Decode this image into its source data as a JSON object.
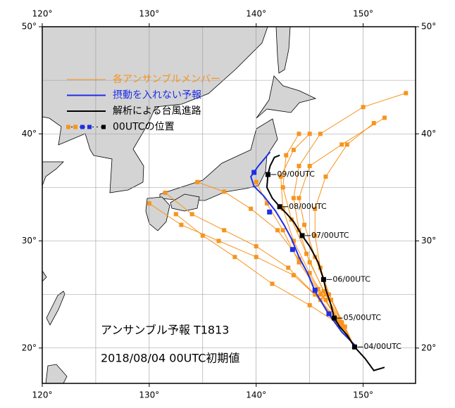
{
  "axes": {
    "xlim": [
      120,
      154.9
    ],
    "ylim": [
      16.7,
      50
    ],
    "xticks": [
      {
        "value": 120,
        "label": "120°"
      },
      {
        "value": 130,
        "label": "130°"
      },
      {
        "value": 140,
        "label": "140°"
      },
      {
        "value": 150,
        "label": "150°"
      }
    ],
    "yticks": [
      {
        "value": 20,
        "label": "20°"
      },
      {
        "value": 30,
        "label": "30°"
      },
      {
        "value": 40,
        "label": "40°"
      },
      {
        "value": 50,
        "label": "50°"
      }
    ],
    "xgrid": [
      125,
      130,
      135,
      140,
      145,
      150
    ],
    "ygrid": [
      20,
      25,
      30,
      35,
      40,
      45
    ]
  },
  "legend": [
    {
      "label": "各アンサンブルメンバー",
      "color": "#f7941d"
    },
    {
      "label": "摂動を入れない予報",
      "color": "#1f2ee6"
    },
    {
      "label": "解析による台風進路",
      "color": "#000000"
    },
    {
      "label": "00UTCの位置",
      "color": "#000000"
    }
  ],
  "annotations": [
    "アンサンブル予報 T1813",
    "2018/08/04 00UTC初期値"
  ],
  "analysis": {
    "color": "#000000",
    "lon": [
      152,
      151,
      150.2,
      149.2,
      148.5,
      147.8,
      147.3,
      147,
      146.5,
      146.3,
      145.8,
      145,
      144.3,
      143.5,
      142.8,
      142.2,
      141.5,
      141,
      141.1,
      141.3,
      141.7,
      142.2
    ],
    "lat": [
      18.2,
      17.9,
      19,
      20.1,
      21.2,
      22,
      22.8,
      24,
      25.5,
      26.4,
      28,
      29.5,
      30.5,
      31.8,
      32.6,
      33.2,
      34,
      35,
      36.2,
      37,
      37.8,
      38
    ],
    "daily": {
      "labels": [
        "04/00UTC",
        "05/00UTC",
        "06/00UTC",
        "07/00UTC",
        "08/00UTC",
        "09/00UTC"
      ],
      "lon": [
        149.2,
        147.3,
        146.3,
        144.3,
        142.2,
        141.1
      ],
      "lat": [
        20.1,
        22.8,
        26.4,
        30.5,
        33.2,
        36.2
      ]
    }
  },
  "control": {
    "color": "#1f2ee6",
    "lon": [
      149.3,
      148,
      146.7,
      145.5,
      144.8,
      144,
      143.3,
      142.6,
      141.8,
      140.7,
      139.8,
      139.5,
      140.2,
      141.3
    ],
    "lat": [
      20.2,
      21.5,
      23.3,
      25.3,
      27,
      28.5,
      30.2,
      31.5,
      32.8,
      34.2,
      35.1,
      36,
      37,
      38.3
    ],
    "daily": {
      "lon": [
        146.8,
        145.5,
        143.4,
        141.25,
        139.8
      ],
      "lat": [
        23.2,
        25.4,
        29.2,
        32.7,
        36.4
      ]
    }
  },
  "members": {
    "color": "#f7941d",
    "tracks": [
      {
        "lon": [
          149.2,
          148,
          146.5,
          145,
          144,
          143.5,
          144,
          146,
          150,
          154
        ],
        "lat": [
          20.1,
          22,
          25,
          28,
          31,
          34,
          37,
          40,
          42.5,
          43.8
        ]
      },
      {
        "lon": [
          149.2,
          148,
          146,
          144,
          142.5,
          141,
          140
        ],
        "lat": [
          20.1,
          22.3,
          25,
          28,
          31,
          33.5,
          35.5
        ]
      },
      {
        "lon": [
          149.2,
          148.3,
          146.8,
          145.5,
          144.5,
          144,
          145,
          148,
          152
        ],
        "lat": [
          20.1,
          22,
          25,
          28.5,
          31.5,
          34,
          37,
          39,
          41.5
        ]
      },
      {
        "lon": [
          149.2,
          147.5,
          145.5,
          143,
          140,
          137,
          134,
          131.5
        ],
        "lat": [
          20.1,
          22.5,
          25,
          27.5,
          29.5,
          31,
          32.5,
          34.5
        ]
      },
      {
        "lon": [
          149.2,
          147.8,
          146,
          143.5,
          140,
          136.5,
          133,
          130
        ],
        "lat": [
          20.1,
          22.3,
          24.5,
          26.8,
          28.5,
          30,
          31.5,
          33.5
        ]
      },
      {
        "lon": [
          149.2,
          148,
          146.5,
          145,
          143.5,
          142.5,
          142.3,
          143.5,
          145
        ],
        "lat": [
          20.1,
          22.2,
          24.5,
          27,
          30,
          33,
          36,
          38.5,
          40
        ]
      },
      {
        "lon": [
          149.2,
          148.2,
          147,
          146,
          145.5,
          145.5,
          146.5,
          148.5,
          151
        ],
        "lat": [
          20.1,
          22,
          24.5,
          27.5,
          30.5,
          33,
          36,
          39,
          41
        ]
      },
      {
        "lon": [
          149.2,
          147.6,
          145.8,
          144,
          142,
          139.5,
          137,
          134.5
        ],
        "lat": [
          20.1,
          22.6,
          25.5,
          28.3,
          31,
          33,
          34.6,
          35.5
        ]
      },
      {
        "lon": [
          149.2,
          148,
          146.3,
          144.7,
          143.3,
          142.5,
          142.8,
          144
        ],
        "lat": [
          20.1,
          22.4,
          25.3,
          28.8,
          32,
          35,
          38,
          40
        ]
      },
      {
        "lon": [
          149.2,
          147.8,
          145,
          141.5,
          138,
          135,
          132.5
        ],
        "lat": [
          20.1,
          22.2,
          24,
          26,
          28.5,
          30.5,
          32.5
        ]
      }
    ]
  }
}
